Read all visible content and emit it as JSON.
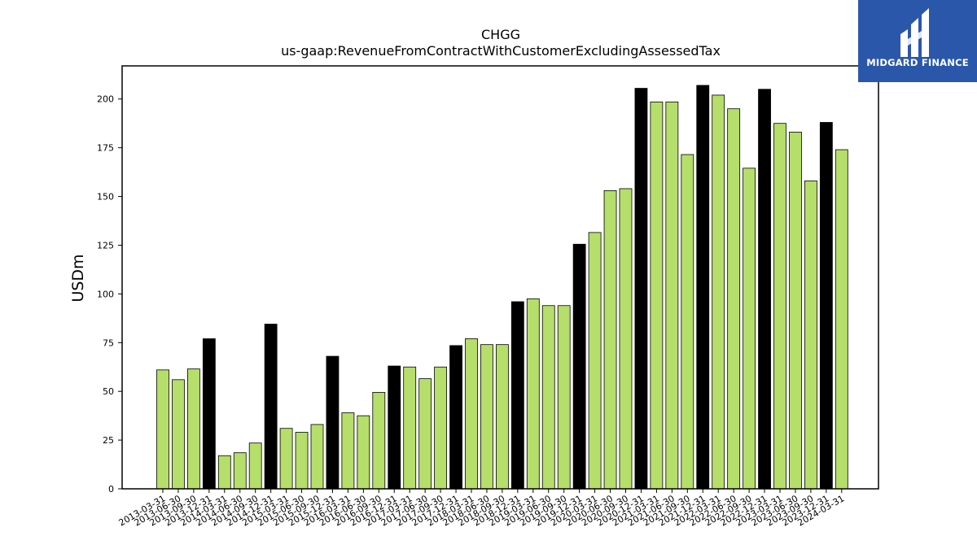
{
  "brand": {
    "name": "MIDGARD FINANCE"
  },
  "chart_data": {
    "type": "bar",
    "title": "CHGG",
    "subtitle": "us-gaap:RevenueFromContractWithCustomerExcludingAssessedTax",
    "ylabel": "USDm",
    "xlabel": "",
    "ylim": [
      0,
      217
    ],
    "yticks": [
      0,
      25,
      50,
      75,
      100,
      125,
      150,
      175,
      200
    ],
    "grid": false,
    "colors": {
      "default": "#b5de6a",
      "q4": "#000000",
      "edge": "#000000"
    },
    "categories": [
      "2013-03-31",
      "2013-06-30",
      "2013-09-30",
      "2013-12-31",
      "2014-03-31",
      "2014-06-30",
      "2014-09-30",
      "2014-12-31",
      "2015-03-31",
      "2015-06-30",
      "2015-09-30",
      "2015-12-31",
      "2016-03-31",
      "2016-06-30",
      "2016-09-30",
      "2016-12-31",
      "2017-03-31",
      "2017-06-30",
      "2017-09-30",
      "2017-12-31",
      "2018-03-31",
      "2018-06-30",
      "2018-09-30",
      "2018-12-31",
      "2019-03-31",
      "2019-06-30",
      "2019-09-30",
      "2019-12-31",
      "2020-03-31",
      "2020-06-30",
      "2020-09-30",
      "2020-12-31",
      "2021-03-31",
      "2021-06-30",
      "2021-09-30",
      "2021-12-31",
      "2022-03-31",
      "2022-06-30",
      "2022-09-30",
      "2022-12-31",
      "2023-03-31",
      "2023-06-30",
      "2023-09-30",
      "2023-12-31",
      "2024-03-31"
    ],
    "values": [
      61,
      56,
      61.5,
      77,
      17,
      18.5,
      23.5,
      84.5,
      31,
      29,
      33,
      68,
      39,
      37.5,
      49.5,
      63,
      62.5,
      56.5,
      62.5,
      73.5,
      77,
      74,
      74,
      96,
      97.5,
      94,
      94,
      125.5,
      131.5,
      153,
      154,
      205.5,
      198.5,
      198.5,
      171.5,
      207,
      202,
      195,
      164.5,
      205,
      187.5,
      183,
      158,
      188,
      174
    ],
    "highlighted": [
      3,
      7,
      11,
      15,
      19,
      23,
      27,
      31,
      35,
      39,
      43
    ]
  }
}
